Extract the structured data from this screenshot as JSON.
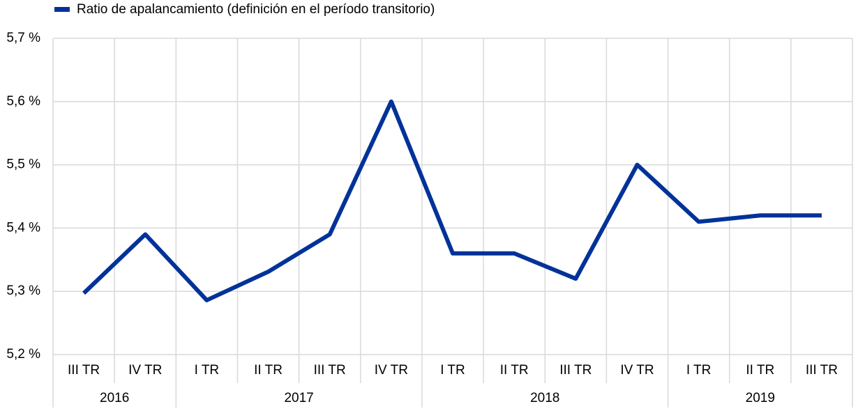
{
  "chart_data": {
    "type": "line",
    "categories": [
      "III TR",
      "IV TR",
      "I TR",
      "II TR",
      "III TR",
      "IV TR",
      "I TR",
      "II TR",
      "III TR",
      "IV TR",
      "I TR",
      "II TR",
      "III TR"
    ],
    "year_groups": [
      {
        "label": "2016",
        "count": 2
      },
      {
        "label": "2017",
        "count": 4
      },
      {
        "label": "2018",
        "count": 4
      },
      {
        "label": "2019",
        "count": 3
      }
    ],
    "series": [
      {
        "name": "Ratio de apalancamiento (definición en el período transitorio)",
        "color": "#003299",
        "values": [
          5.297,
          5.39,
          5.286,
          5.331,
          5.39,
          5.6,
          5.36,
          5.36,
          5.32,
          5.5,
          5.41,
          5.42,
          5.42
        ]
      }
    ],
    "ylim": [
      5.2,
      5.7
    ],
    "yticks": [
      {
        "value": 5.2,
        "label": "5,2 %"
      },
      {
        "value": 5.3,
        "label": "5,3 %"
      },
      {
        "value": 5.4,
        "label": "5,4 %"
      },
      {
        "value": 5.5,
        "label": "5,5 %"
      },
      {
        "value": 5.6,
        "label": "5,6 %"
      },
      {
        "value": 5.7,
        "label": "5,7 %"
      }
    ],
    "grid": true,
    "legend": "top-left"
  }
}
